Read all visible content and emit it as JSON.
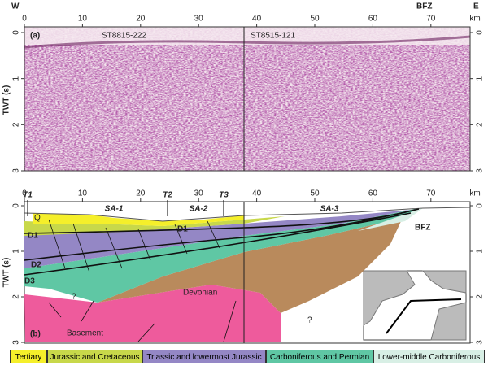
{
  "header": {
    "west": "W",
    "east": "E",
    "bfz": "BFZ"
  },
  "axes": {
    "x_unit": "km",
    "y_label": "TWT (s)",
    "x_ticks": [
      0,
      10,
      20,
      30,
      40,
      50,
      60,
      70
    ],
    "y_ticks": [
      0,
      1,
      2,
      3
    ]
  },
  "panel_a": {
    "label": "(a)",
    "line_left": "ST8815-222",
    "line_right": "ST8515-121"
  },
  "panel_b": {
    "label": "(b)",
    "markers": [
      "T1",
      "T2",
      "T3"
    ],
    "sequences": [
      "SA-1",
      "SA-2",
      "SA-3"
    ],
    "bfz": "BFZ",
    "units": {
      "q": "Q",
      "d1a": "D1",
      "d1b": "D1",
      "d2": "D2",
      "d3": "D3",
      "q1": "?",
      "q2": "?",
      "devonian": "Devonian",
      "basement": "Basement"
    }
  },
  "legend": [
    "Tertiary",
    "Jurassic and Cretaceous",
    "Triassic and lowermost Jurassic",
    "Carboniferous and Permian",
    "Lower-middle Carboniferous"
  ]
}
